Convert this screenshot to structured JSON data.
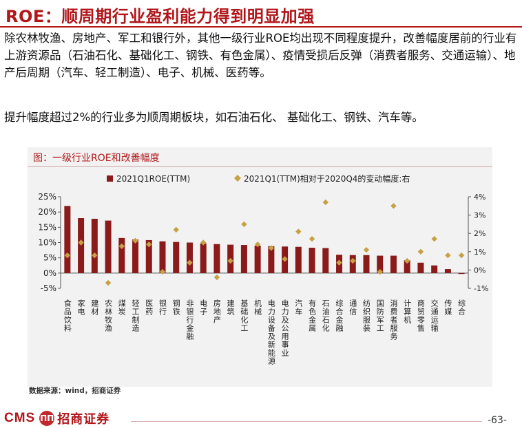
{
  "page": {
    "title": "ROE：顺周期行业盈利能力得到明显加强",
    "paragraph1": "除农林牧渔、房地产、军工和银行外，其他一级行业ROE均出现不同程度提升，改善幅度居前的行业有上游资源品（石油石化、基础化工、钢铁、有色金属）、疫情受损后反弹（消费者服务、交通运输）、地产后周期（汽车、轻工制造）、电子、机械、医药等。",
    "paragraph2": "提升幅度超过2%的行业多为顺周期板块，如石油石化、 基础化工、钢铁、汽车等。",
    "figure_title": "图：一级行业ROE和改善幅度",
    "source": "数据来源：wind，招商证券",
    "logo_en": "CMS",
    "logo_emblem": "ΠΠ",
    "logo_cn": "招商证券",
    "page_number": "-63-"
  },
  "chart_data": {
    "type": "bar",
    "categories": [
      "食品饮料",
      "家电",
      "建材",
      "农林牧渔",
      "煤炭",
      "轻工制造",
      "医药",
      "银行",
      "钢铁",
      "非银行金融",
      "电子",
      "房地产",
      "建筑",
      "基础化工",
      "机械",
      "电力设备及新能源",
      "电力及公用事业",
      "汽车",
      "有色金属",
      "石油石化",
      "综合金融",
      "通信",
      "纺织服装",
      "国防军工",
      "消费者服务",
      "计算机",
      "商贸零售",
      "交通运输",
      "传媒",
      "综合"
    ],
    "series": [
      {
        "name": "2021Q1ROE(TTM)",
        "type": "bar",
        "axis": "left",
        "color": "#8b1a1a",
        "values": [
          22.0,
          18.0,
          17.8,
          17.2,
          11.5,
          11.0,
          10.8,
          10.4,
          10.2,
          10.0,
          9.7,
          9.5,
          9.3,
          9.2,
          9.0,
          8.8,
          8.7,
          8.6,
          8.3,
          8.2,
          6.0,
          5.9,
          5.9,
          5.7,
          5.7,
          4.2,
          3.4,
          2.5,
          1.3,
          -0.3
        ]
      },
      {
        "name": "2021Q1(TTM)相对于2020Q4的变动幅度:右",
        "type": "scatter",
        "axis": "right",
        "color": "#c8a045",
        "values": [
          0.8,
          1.5,
          0.8,
          -0.7,
          1.3,
          1.6,
          1.4,
          -0.1,
          2.2,
          0.4,
          1.5,
          -0.4,
          0.5,
          2.5,
          1.4,
          1.2,
          0.6,
          2.1,
          1.7,
          3.7,
          0.4,
          0.5,
          1.1,
          -0.1,
          3.5,
          0.5,
          1.0,
          1.7,
          0.8,
          0.8
        ]
      }
    ],
    "ylim_left": [
      -5,
      25
    ],
    "yticks_left": [
      "-5%",
      "0%",
      "5%",
      "10%",
      "15%",
      "20%",
      "25%"
    ],
    "ylim_right": [
      -1,
      4
    ],
    "yticks_right": [
      "-1%",
      "0%",
      "1%",
      "2%",
      "3%",
      "4%"
    ],
    "legend_position": "top",
    "grid": false
  }
}
